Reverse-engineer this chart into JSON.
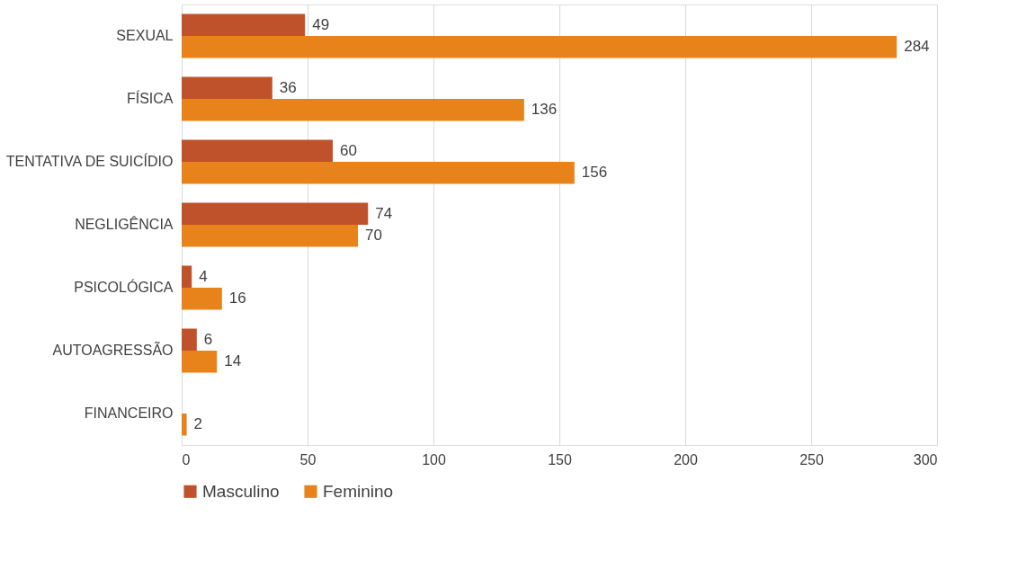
{
  "chart_data": {
    "type": "bar",
    "orientation": "horizontal",
    "categories": [
      "SEXUAL",
      "FÍSICA",
      "TENTATIVA DE SUICÍDIO",
      "NEGLIGÊNCIA",
      "PSICOLÓGICA",
      "AUTOAGRESSÃO",
      "FINANCEIRO"
    ],
    "series": [
      {
        "name": "Masculino",
        "color": "#c0522b",
        "values": [
          49,
          36,
          60,
          74,
          4,
          6,
          null
        ]
      },
      {
        "name": "Feminino",
        "color": "#e8821a",
        "values": [
          284,
          136,
          156,
          70,
          16,
          14,
          2
        ]
      }
    ],
    "xlim": [
      0,
      300
    ],
    "xticks": [
      0,
      50,
      100,
      150,
      200,
      250,
      300
    ],
    "grid": "x",
    "legend": "bottom",
    "data_labels": true
  }
}
